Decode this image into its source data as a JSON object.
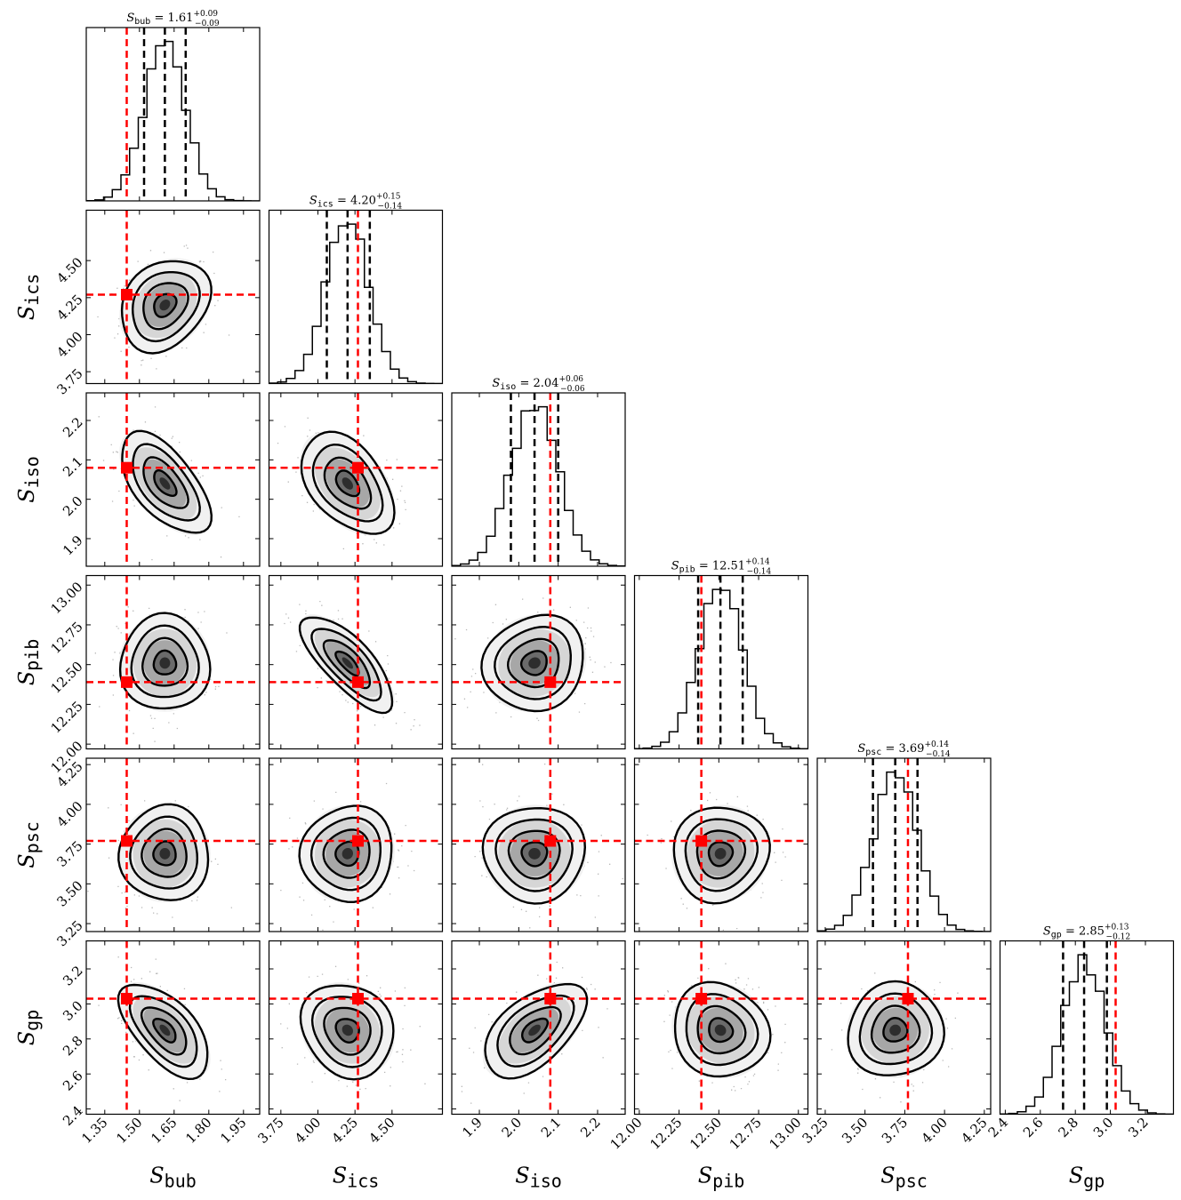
{
  "chart_data": {
    "type": "corner",
    "parameters": [
      {
        "key": "bub",
        "name": "S",
        "sub": "bub",
        "median": "1.61",
        "err_plus": "+0.09",
        "err_minus": "−0.09",
        "q16": 1.52,
        "q50": 1.61,
        "q84": 1.7,
        "truth": 1.445,
        "sd": 0.09,
        "range": [
          1.27,
          2.02
        ],
        "ticks": [
          "1.35",
          "1.50",
          "1.65",
          "1.80",
          "1.95"
        ]
      },
      {
        "key": "ics",
        "name": "S",
        "sub": "ics",
        "median": "4.20",
        "err_plus": "+0.15",
        "err_minus": "−0.14",
        "q16": 4.06,
        "q50": 4.2,
        "q84": 4.35,
        "truth": 4.27,
        "sd": 0.145,
        "range": [
          3.67,
          4.84
        ],
        "ticks": [
          "3.75",
          "4.00",
          "4.25",
          "4.50"
        ]
      },
      {
        "key": "iso",
        "name": "S",
        "sub": "iso",
        "median": "2.04",
        "err_plus": "+0.06",
        "err_minus": "−0.06",
        "q16": 1.98,
        "q50": 2.04,
        "q84": 2.1,
        "truth": 2.08,
        "sd": 0.06,
        "range": [
          1.83,
          2.27
        ],
        "ticks": [
          "1.9",
          "2.0",
          "2.1",
          "2.2"
        ]
      },
      {
        "key": "pib",
        "name": "S",
        "sub": "pib",
        "median": "12.51",
        "err_plus": "+0.14",
        "err_minus": "−0.14",
        "q16": 12.37,
        "q50": 12.51,
        "q84": 12.65,
        "truth": 12.39,
        "sd": 0.14,
        "range": [
          11.97,
          13.06
        ],
        "ticks": [
          "12.00",
          "12.25",
          "12.50",
          "12.75",
          "13.00"
        ]
      },
      {
        "key": "psc",
        "name": "S",
        "sub": "psc",
        "median": "3.69",
        "err_plus": "+0.14",
        "err_minus": "−0.14",
        "q16": 3.55,
        "q50": 3.69,
        "q84": 3.83,
        "truth": 3.77,
        "sd": 0.14,
        "range": [
          3.2,
          4.29
        ],
        "ticks": [
          "3.25",
          "3.50",
          "3.75",
          "4.00",
          "4.25"
        ]
      },
      {
        "key": "gp",
        "name": "S",
        "sub": "gp",
        "median": "2.85",
        "err_plus": "+0.13",
        "err_minus": "−0.12",
        "q16": 2.73,
        "q50": 2.85,
        "q84": 2.98,
        "truth": 3.03,
        "sd": 0.125,
        "range": [
          2.37,
          3.36
        ],
        "ticks": [
          "2.4",
          "2.6",
          "2.8",
          "3.0",
          "3.2"
        ]
      }
    ],
    "correlations": {
      "1-0": 0.25,
      "2-0": -0.6,
      "2-1": -0.45,
      "3-0": 0.0,
      "3-1": -0.75,
      "3-2": 0.1,
      "4-0": 0.0,
      "4-1": 0.05,
      "4-2": 0.0,
      "4-3": 0.05,
      "5-0": -0.6,
      "5-1": -0.15,
      "5-2": 0.55,
      "5-3": -0.1,
      "5-4": 0.05
    },
    "contour_levels_sigma": [
      0.5,
      1.0,
      1.5,
      2.0
    ],
    "truth_color": "#ff0000",
    "quantile_color": "#000000",
    "hist_bins": 20
  }
}
